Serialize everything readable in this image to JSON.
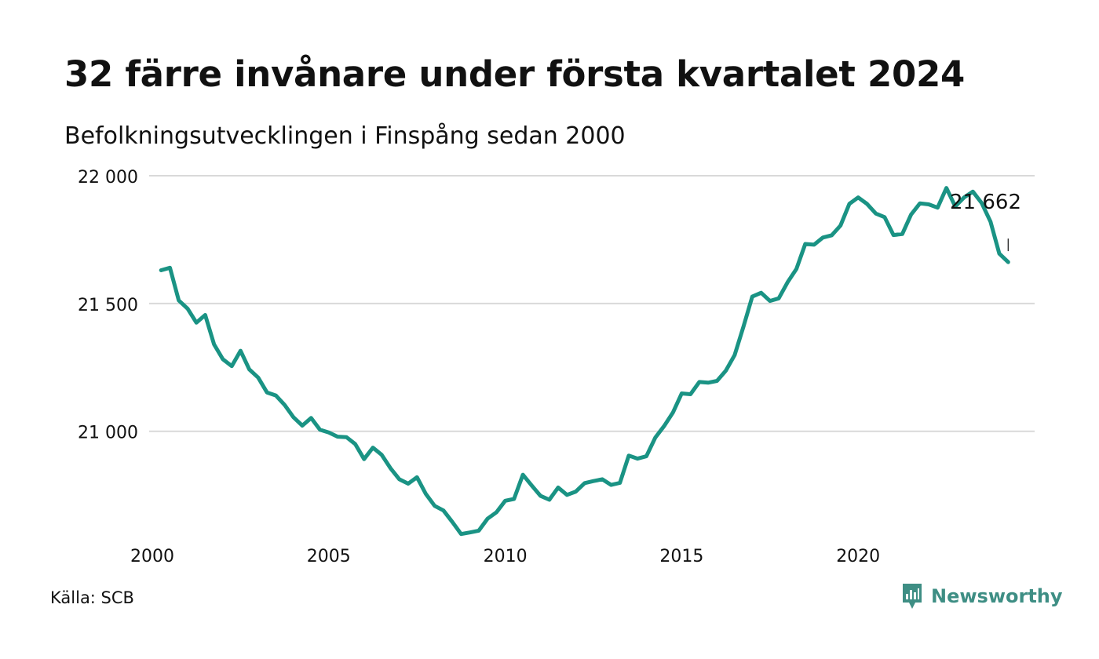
{
  "header": {
    "title": "32 färre invånare under första kvartalet 2024",
    "subtitle": "Befolkningsutvecklingen i Finspång sedan 2000"
  },
  "footer": {
    "source": "Källa: SCB",
    "brand": "Newsworthy",
    "brand_icon": "newsworthy-logo-icon",
    "brand_color": "#3e8e84"
  },
  "colors": {
    "line": "#1a9384",
    "grid": "#d9d9d9",
    "text": "#111111"
  },
  "chart_data": {
    "type": "line",
    "title": "32 färre invånare under första kvartalet 2024",
    "subtitle": "Befolkningsutvecklingen i Finspång sedan 2000",
    "xlabel": "",
    "ylabel": "",
    "xlim": [
      2000,
      2025
    ],
    "ylim": [
      20600,
      22000
    ],
    "grid": true,
    "y_ticks": [
      21000,
      21500,
      22000
    ],
    "y_tick_labels": [
      "21 000",
      "21 500",
      "22 000"
    ],
    "x_ticks": [
      2000,
      2005,
      2010,
      2015,
      2020
    ],
    "x_tick_labels": [
      "2000",
      "2005",
      "2010",
      "2015",
      "2020"
    ],
    "end_label": "21 662",
    "x_unit": "year (quarterly data)",
    "x": [
      2000.25,
      2000.5,
      2000.75,
      2001.0,
      2001.25,
      2001.5,
      2001.75,
      2002.0,
      2002.25,
      2002.5,
      2002.75,
      2003.0,
      2003.25,
      2003.5,
      2003.75,
      2004.0,
      2004.25,
      2004.5,
      2004.75,
      2005.0,
      2005.25,
      2005.5,
      2005.75,
      2006.0,
      2006.25,
      2006.5,
      2006.75,
      2007.0,
      2007.25,
      2007.5,
      2007.75,
      2008.0,
      2008.25,
      2008.5,
      2008.75,
      2009.0,
      2009.25,
      2009.5,
      2009.75,
      2010.0,
      2010.25,
      2010.5,
      2010.75,
      2011.0,
      2011.25,
      2011.5,
      2011.75,
      2012.0,
      2012.25,
      2012.5,
      2012.75,
      2013.0,
      2013.25,
      2013.5,
      2013.75,
      2014.0,
      2014.25,
      2014.5,
      2014.75,
      2015.0,
      2015.25,
      2015.5,
      2015.75,
      2016.0,
      2016.25,
      2016.5,
      2016.75,
      2017.0,
      2017.25,
      2017.5,
      2017.75,
      2018.0,
      2018.25,
      2018.5,
      2018.75,
      2019.0,
      2019.25,
      2019.5,
      2019.75,
      2020.0,
      2020.25,
      2020.5,
      2020.75,
      2021.0,
      2021.25,
      2021.5,
      2021.75,
      2022.0,
      2022.25,
      2022.5,
      2022.75,
      2023.0,
      2023.25,
      2023.5,
      2023.75,
      2024.0,
      2024.25
    ],
    "y": [
      21630,
      21640,
      21512,
      21480,
      21425,
      21455,
      21340,
      21282,
      21255,
      21315,
      21242,
      21210,
      21152,
      21140,
      21103,
      21055,
      21022,
      21052,
      21006,
      20995,
      20979,
      20977,
      20950,
      20891,
      20936,
      20908,
      20855,
      20812,
      20795,
      20820,
      20755,
      20708,
      20690,
      20645,
      20598,
      20604,
      20611,
      20658,
      20683,
      20728,
      20735,
      20830,
      20788,
      20747,
      20732,
      20780,
      20751,
      20764,
      20797,
      20805,
      20812,
      20790,
      20798,
      20905,
      20893,
      20902,
      20975,
      21020,
      21073,
      21148,
      21145,
      21193,
      21190,
      21197,
      21237,
      21298,
      21410,
      21527,
      21542,
      21510,
      21520,
      21583,
      21635,
      21733,
      21730,
      21758,
      21767,
      21805,
      21890,
      21915,
      21890,
      21852,
      21838,
      21768,
      21772,
      21848,
      21892,
      21888,
      21875,
      21952,
      21880,
      21915,
      21938,
      21893,
      21820,
      21695,
      21662
    ]
  }
}
